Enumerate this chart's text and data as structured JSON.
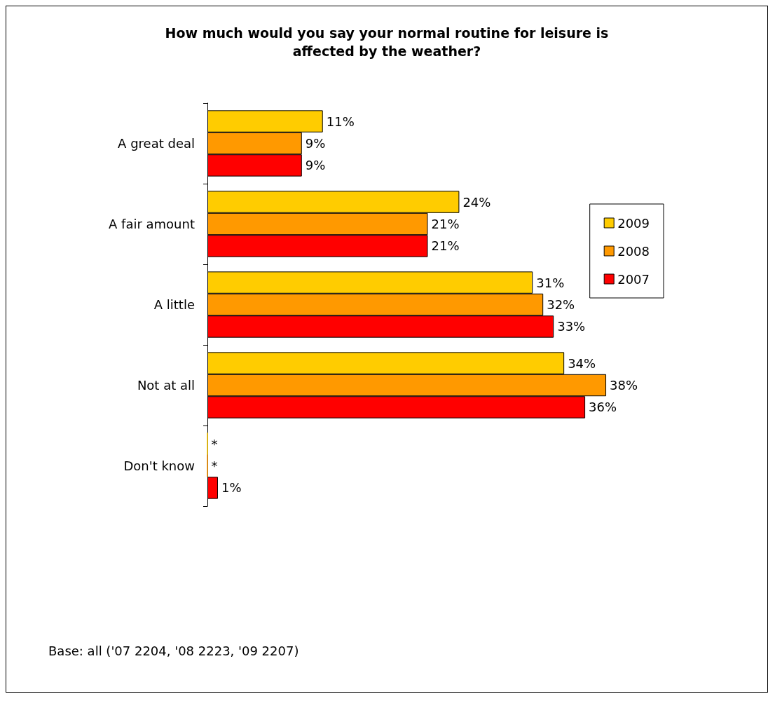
{
  "chart_data": {
    "type": "bar",
    "orientation": "horizontal",
    "title": "How much would you say your normal routine for leisure is\naffected by the weather?",
    "categories": [
      "A great deal",
      "A fair amount",
      "A little",
      "Not at all",
      "Don't know"
    ],
    "series": [
      {
        "name": "2009",
        "color": "#ffcc00",
        "values": [
          11,
          24,
          31,
          34,
          0
        ],
        "value_labels": [
          "11%",
          "24%",
          "31%",
          "34%",
          "*"
        ]
      },
      {
        "name": "2008",
        "color": "#ff9900",
        "values": [
          9,
          21,
          32,
          38,
          0
        ],
        "value_labels": [
          "9%",
          "21%",
          "32%",
          "38%",
          "*"
        ]
      },
      {
        "name": "2007",
        "color": "#ff0000",
        "values": [
          9,
          21,
          33,
          36,
          1
        ],
        "value_labels": [
          "9%",
          "21%",
          "33%",
          "36%",
          "1%"
        ]
      }
    ],
    "legend": "right",
    "annotations": [
      "Base: all ('07 2204, '08 2223, '09 2207)"
    ]
  }
}
